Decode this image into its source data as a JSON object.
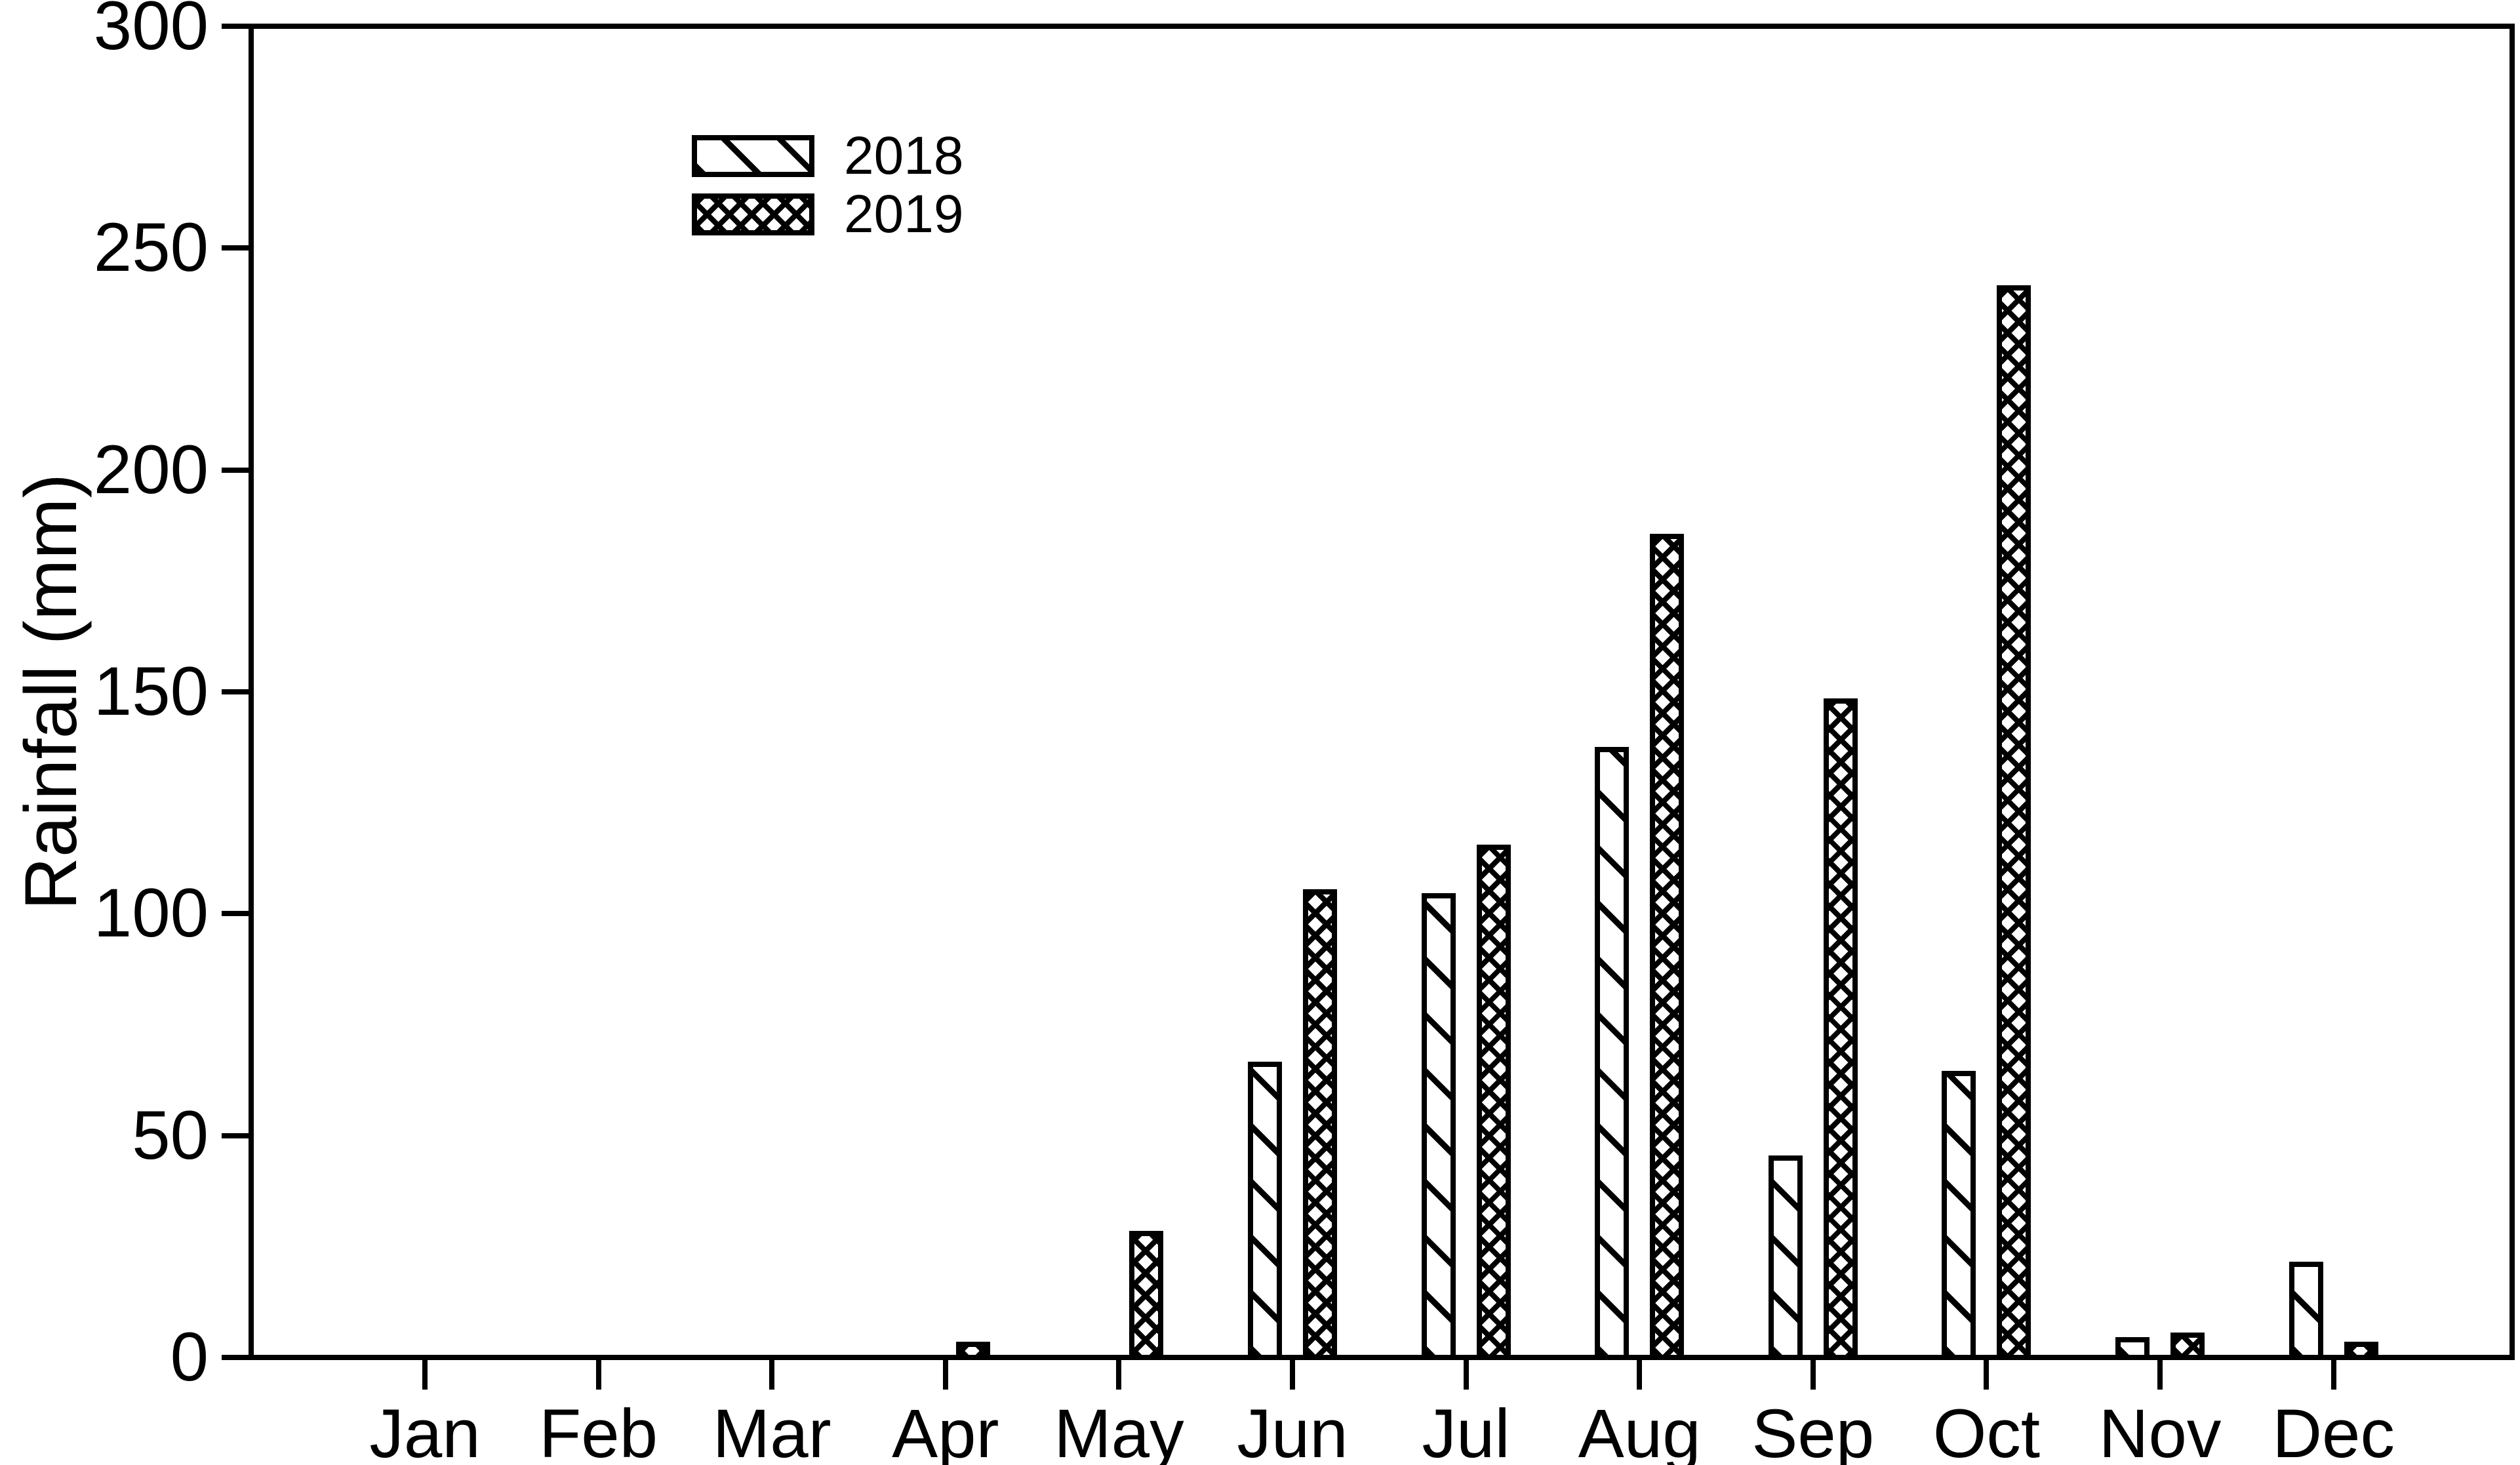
{
  "chart_data": {
    "type": "bar",
    "title": "",
    "xlabel": "",
    "ylabel": "Rainfall (mm)",
    "categories": [
      "Jan",
      "Feb",
      "Mar",
      "Apr",
      "May",
      "Jun",
      "Jul",
      "Aug",
      "Sep",
      "Oct",
      "Nov",
      "Dec"
    ],
    "series": [
      {
        "name": "2018",
        "pattern": "diagonal-hatch",
        "values": [
          0,
          0,
          0,
          0,
          0,
          66,
          104,
          137,
          45,
          64,
          4,
          21
        ]
      },
      {
        "name": "2019",
        "pattern": "crosshatch",
        "values": [
          0,
          0,
          0,
          3,
          28,
          105,
          115,
          185,
          148,
          241,
          5,
          3
        ]
      }
    ],
    "ylim": [
      0,
      300
    ],
    "yticks": [
      0,
      50,
      100,
      150,
      200,
      250,
      300
    ],
    "grid": false,
    "legend_position": "upper-left-inside",
    "colors": {
      "foreground": "#000000",
      "background": "#ffffff"
    }
  }
}
